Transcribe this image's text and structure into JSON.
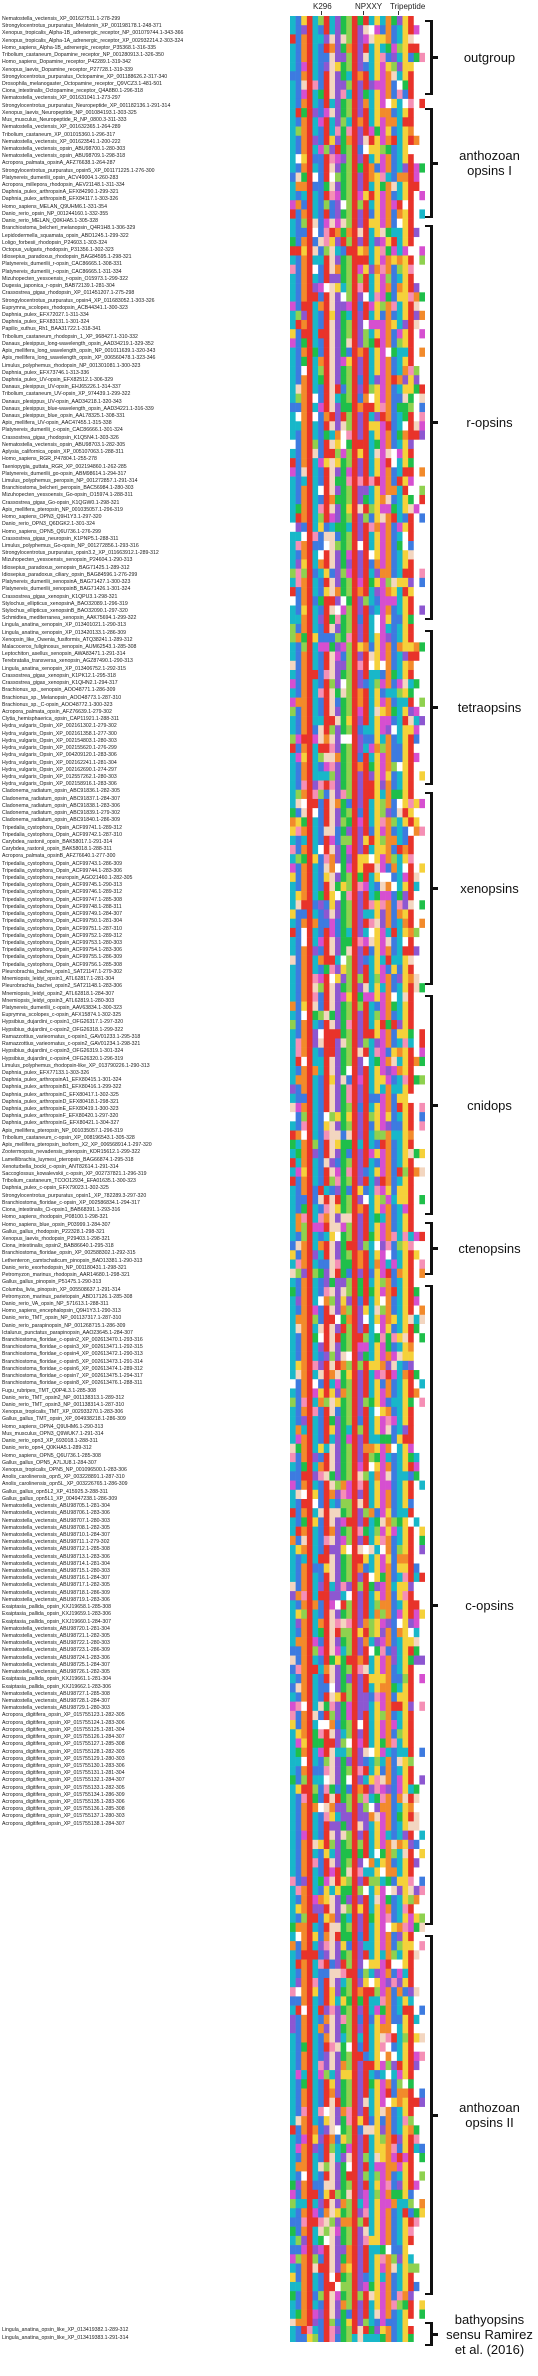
{
  "motifs": [
    {
      "label": "K296",
      "left": 18
    },
    {
      "label": "NPXXY",
      "left": 60
    },
    {
      "label": "Tripeptide",
      "left": 95
    }
  ],
  "clades": [
    {
      "id": "outgroup",
      "label": "outgroup"
    },
    {
      "id": "anthozoan-opsins-i",
      "label": "anthozoan\nopsins I"
    },
    {
      "id": "r-opsins",
      "label": "r-opsins"
    },
    {
      "id": "tetraopsins",
      "label": "tetraopsins"
    },
    {
      "id": "xenopsins",
      "label": "xenopsins"
    },
    {
      "id": "cnidops",
      "label": "cnidops"
    },
    {
      "id": "ctenopsins",
      "label": "ctenopsins"
    },
    {
      "id": "c-opsins",
      "label": "c-opsins"
    },
    {
      "id": "anthozoan-opsins-ii",
      "label": "anthozoan\nopsins II"
    },
    {
      "id": "bathyopsins",
      "label": "bathyopsins\nsensu Ramirez\net al. (2016)"
    }
  ],
  "sequences": [
    "Nematostella_vectensis_XP_001627511.1-278-299",
    "Strongylocentrotus_purpuratus_Melatonin_XP_001198178.1-248-371",
    "Xenopus_tropicalis_Alpha-1B_adrenergic_receptor_NP_001079744.1-343-366",
    "Xenopus_tropicalis_Alpha-1A_adrenergic_receptor_XP_002932214.2-303-324",
    "Homo_sapiens_Alpha-1B_adrenergic_receptor_P35368.1-316-335",
    "Tribolium_castaneum_Dopamine_receptor_NP_001280913.1-326-350",
    "Homo_sapiens_Dopamine_receptor_P42289.1-319-342",
    "Xenopus_laevis_Dopamine_receptor_P27728.1-319-339",
    "Strongylocentrotus_purpuratus_Octopamine_XP_001188626.2-317-340",
    "Drosophila_melanogaster_Octopamine_receptor_Q9VCZ3.1-481-501",
    "Ciona_intestinalis_Octopamine_receptor_Q4A8B0.1-296-318",
    "Nematostella_vectensis_XP_001631041.1-273-297",
    "Strongylocentrotus_purpuratus_Neuropeptide_XP_001182136.1-291-314",
    "Xenopus_laevis_Neuropeptide_NP_001084193.1-303-325",
    "Mus_musculus_Neuropeptide_R_NP_0800.3-311-333",
    "Nematostella_vectensis_XP_001632365.1-264-289",
    "Tribolium_castaneum_XP_001015360.1-296-317",
    "Nematostella_vectensis_XP_001623541.1-200-222",
    "Nematostella_vectensis_opsin_ABU98700.1-280-303",
    "Nematostella_vectensis_opsin_ABU98709.1-298-318",
    "Acropora_palmata_opsinA_AFZ76638.1-264-287",
    "Strongylocentrotus_purpuratus_opsin5_XP_001171225.1-276-300",
    "Platynereis_dumerilii_opsin_ACV49004.1-260-283",
    "Acropora_millepora_rhodopsin_AEV21148.1-311-334",
    "Daphnia_pulex_arthropsinA_EFX84290.1-299-321",
    "Daphnia_pulex_arthropsinB_EFX84117.1-303-326",
    "Homo_sapiens_MELAN_Q9UHM6.1-331-354",
    "Danio_rerio_opsin_NP_001244160.1-332-355",
    "Danio_rerio_MELAN_Q0KHA5.1-305-328",
    "Branchiostoma_belcheri_melanopsin_Q4R1H8.1-306-329",
    "Lepidodermella_squamata_opsin_ABD1245.1-299-322",
    "Loligo_forbesii_rhodopsin_P24603.1-303-324",
    "Octopus_vulgaris_rhodopsin_P31356.1-302-323",
    "Idiosepius_paradoxus_rhodopsin_BAG84595.1-298-321",
    "Platynereis_dumerilii_r-opsin_CAC86665.1-308-331",
    "Platynereis_dumerilii_r-opsin_CAC86665.1-311-334",
    "Mizuhopecten_yessoensis_r-opsin_O15973.1-299-322",
    "Dugesia_japonica_r-opsin_BAB72139.1-281-304",
    "Crassostrea_gigas_rhodopsin_XP_011451207.1-275-298",
    "Strongylocentrotus_purpuratus_opsin4_XP_011683052.1-303-326",
    "Euprymna_scolopes_rhodopsin_ACB44341.1-300-323",
    "Daphnia_pulex_EFX72027.1-311-334",
    "Daphnia_pulex_EFX83131.1-301-324",
    "Papilio_xuthus_Rh1_BAA31722.1-318-341",
    "Tribolium_castaneum_rhodopsin_1_XP_968427.1-310-332",
    "Danaus_plexippus_long-wavelength_opsin_AAD34219.1-329-352",
    "Apis_mellifera_long_wavelength_opsin_NP_001011639.1-320-343",
    "Apis_mellifera_long_wavelength_opsin_XP_006560478.1-323-346",
    "Limulus_polyphemus_rhodopsin_NP_001301081.1-300-323",
    "Daphnia_pulex_EFX73746.1-313-336",
    "Daphnia_pulex_UV-opsin_EFX82512.1-306-329",
    "Danaus_plexippus_UV-opsin_EHJ65226.1-314-337",
    "Tribolium_castaneum_UV-opsin_XP_974439.1-299-322",
    "Danaus_plexippus_UV-opsin_AAD34218.1-320-343",
    "Danaus_plexippus_blue-wavelength_opsin_AAD34221.1-316-339",
    "Danaus_plexippus_blue_opsin_AAL78325.1-308-331",
    "Apis_mellifera_UV-opsin_AAC47455.1-315-338",
    "Platynereis_dumerilii_c-opsin_CAC86666.1-301-324",
    "Crassostrea_gigas_rhodopsin_K1Q5N4.1-303-326",
    "Nematostella_vectensis_opsin_ABU98703.1-282-305",
    "Aplysia_californica_opsin_XP_005107063.1-288-311",
    "Homo_sapiens_RGR_P47804.1-255-278",
    "Taeniopygia_guttata_RGR_XP_002194860.1-262-285",
    "Platynereis_dumerilii_go-opsin_ABM98614.1-294-317",
    "Limulus_polyphemus_peropsin_NP_001272857.1-291-314",
    "Branchiostoma_belcheri_peropsin_BAC56984.1-280-303",
    "Mizuhopecten_yessoensis_Go-opsin_O15974.1-288-311",
    "Crassostrea_gigas_Go-opsin_K1QGW0.1-298-321",
    "Apis_mellifera_pteropsin_NP_001035057.1-296-319",
    "Homo_sapiens_OPN3_Q9H1Y3.1-297-320",
    "Danio_rerio_OPN3_Q6DGK2.1-301-324",
    "Homo_sapiens_OPN5_Q6U736.1-276-299",
    "Crassostrea_gigas_neuropsin_K1PNP5.1-288-311",
    "Limulus_polyphemus_Go-opsin_NP_001272856.1-293-316",
    "Strongylocentrotus_purpuratus_opsin3.2_XP_011663912.1-289-312",
    "Mizuhopecten_yessoensis_xenopsin_P24604.1-290-313",
    "Idiosepius_paradoxus_xenopsin_BAG71425.1-289-312",
    "Idiosepius_paradoxus_ciliary_opsin_BAG84596.1-276-299",
    "Platynereis_dumerilii_xenopsinA_BAG71427.1-300-323",
    "Platynereis_dumerilii_xenopsinB_BAG71426.1-301-324",
    "Crassostrea_gigas_xenopsin_K1QPU3.1-298-321",
    "Stylochus_ellipticus_xenopsinA_BAO32089.1-296-319",
    "Stylochus_ellipticus_xenopsinB_BAO32090.1-297-320",
    "Schmidtea_mediterranea_xenopsin_AAK75694.1-299-322",
    "Lingula_anatina_xenopsin_XP_013401021.1-290-313",
    "Lingula_anatina_xenopsin_XP_013420133.1-286-309",
    "Xenopsin_like_Owenia_fusiformis_ATQ38241.1-289-312",
    "Malacoceros_fuliginosus_xenopsin_AUM62543.1-285-308",
    "Leptochiton_asellus_xenopsin_AWA83471.1-291-314",
    "Terebratalia_transversa_xenopsin_AGZ87490.1-290-313",
    "Lingula_anatina_xenopsin_XP_013406752.1-292-315",
    "Crassostrea_gigas_xenopsin_K1PK12.1-295-318",
    "Crassostrea_gigas_xenopsin_K1QHN2.1-294-317",
    "Brachionus_sp._xenopsin_AOO48771.1-286-309",
    "Brachionus_sp._Melanopsin_AOO48773.1-287-310",
    "Brachionus_sp._C-opsin_AOO48772.1-300-323",
    "Acropora_palmata_opsin_AFZ76639.1-279-302",
    "Clytia_hemisphaerica_opsin_CAP11921.1-288-311",
    "Hydra_vulgaris_Opsin_XP_002161302.1-279-302",
    "Hydra_vulgaris_Opsin_XP_002161358.1-277-300",
    "Hydra_vulgaris_Opsin_XP_002154803.1-280-303",
    "Hydra_vulgaris_Opsin_XP_002155620.1-276-299",
    "Hydra_vulgaris_Opsin_XP_004209120.1-283-306",
    "Hydra_vulgaris_Opsin_XP_002162241.1-281-304",
    "Hydra_vulgaris_Opsin_XP_002162690.1-274-297",
    "Hydra_vulgaris_Opsin_XP_012557262.1-280-303",
    "Hydra_vulgaris_Opsin_XP_002158916.1-283-306",
    "Cladonema_radiatum_opsin_ABC91836.1-282-305",
    "Cladonema_radiatum_opsin_ABC91837.1-284-307",
    "Cladonema_radiatum_opsin_ABC91838.1-283-306",
    "Cladonema_radiatum_opsin_ABC91839.1-279-302",
    "Cladonema_radiatum_opsin_ABC91840.1-286-309",
    "Tripedalia_cystophora_Opsin_ACF99741.1-289-312",
    "Tripedalia_cystophora_Opsin_ACF99742.1-287-310",
    "Carybdea_rastonii_opsin_BAK58017.1-291-314",
    "Carybdea_rastonii_opsin_BAK58018.1-288-311",
    "Acropora_palmata_opsinB_AFZ76640.1-277-300",
    "Tripedalia_cystophora_Opsin_ACF99743.1-286-309",
    "Tripedalia_cystophora_Opsin_ACF99744.1-283-306",
    "Tripedalia_cystophora_neuropsin_AGO21460.1-282-305",
    "Tripedalia_cystophora_Opsin_ACF99745.1-290-313",
    "Tripedalia_cystophora_Opsin_ACF99746.1-289-312",
    "Tripedalia_cystophora_Opsin_ACF99747.1-285-308",
    "Tripedalia_cystophora_Opsin_ACF99748.1-288-311",
    "Tripedalia_cystophora_Opsin_ACF99749.1-284-307",
    "Tripedalia_cystophora_Opsin_ACF99750.1-281-304",
    "Tripedalia_cystophora_Opsin_ACF99751.1-287-310",
    "Tripedalia_cystophora_Opsin_ACF99752.1-289-312",
    "Tripedalia_cystophora_Opsin_ACF99753.1-280-303",
    "Tripedalia_cystophora_Opsin_ACF99754.1-283-306",
    "Tripedalia_cystophora_Opsin_ACF99755.1-286-309",
    "Tripedalia_cystophora_Opsin_ACF99756.1-285-308",
    "Pleurobrachia_bachei_opsin1_SAT21147.1-279-302",
    "Mnemiopsis_leidyi_opsin1_ATL62817.1-281-304",
    "Pleurobrachia_bachei_opsin2_SAT21148.1-283-306",
    "Mnemiopsis_leidyi_opsin2_ATL62818.1-284-307",
    "Mnemiopsis_leidyi_opsin3_ATL62819.1-280-303",
    "Platynereis_dumerilii_c-opsin_AAV63834.1-300-323",
    "Euprymna_scolopes_c-opsin_AFX15874.1-302-325",
    "Hypsibius_dujardini_c-opsin1_OFG26317.1-297-320",
    "Hypsibius_dujardini_c-opsin2_OFG26318.1-299-322",
    "Ramazzottius_varieornatus_c-opsin1_GAV01233.1-295-318",
    "Ramazzottius_varieornatus_c-opsin2_GAV01234.1-298-321",
    "Hypsibius_dujardini_c-opsin3_OFG26319.1-301-324",
    "Hypsibius_dujardini_c-opsin4_OFG26320.1-296-319",
    "Limulus_polyphemus_rhodopsin-like_XP_013790226.1-290-313",
    "Daphnia_pulex_EFX77133.1-303-326",
    "Daphnia_pulex_arthropsinA1_EFX80415.1-301-324",
    "Daphnia_pulex_arthropsinB1_EFX80416.1-299-322",
    "Daphnia_pulex_arthropsinC_EFX80417.1-302-325",
    "Daphnia_pulex_arthropsinD_EFX80418.1-298-321",
    "Daphnia_pulex_arthropsinE_EFX80419.1-300-323",
    "Daphnia_pulex_arthropsinF_EFX80420.1-297-320",
    "Daphnia_pulex_arthropsinG_EFX80421.1-304-327",
    "Apis_mellifera_pteropsin_NP_001035057.1-296-319",
    "Tribolium_castaneum_c-opsin_XP_008196543.1-305-328",
    "Apis_mellifera_pteropsin_isoform_X2_XP_006568914.1-297-320",
    "Zootermopsis_nevadensis_pteropsin_KDR15612.1-299-322",
    "Lamellibrachia_luymesi_pteropsin_BAG66874.1-295-318",
    "Xenoturbella_bocki_c-opsin_ANT82614.1-291-314",
    "Saccoglossus_kowalevskii_c-opsin_XP_002737821.1-296-319",
    "Tribolium_castaneum_TCOO12934_EFA01635.1-300-323",
    "Daphnia_pulex_c-opsin_EFX79023.1-302-325",
    "Strongylocentrotus_purpuratus_opsin1_XP_782289.3-297-320",
    "Branchiostoma_floridae_c-opsin_XP_002586834.1-294-317",
    "Ciona_intestinalis_Ci-opsin1_BAB68391.1-293-316",
    "Homo_sapiens_rhodopsin_P08100.1-298-321",
    "Homo_sapiens_blue_opsin_P03999.1-284-307",
    "Gallus_gallus_rhodopsin_P22328.1-298-321",
    "Xenopus_laevis_rhodopsin_P29403.1-298-321",
    "Ciona_intestinalis_opsin2_BAB86640.1-295-318",
    "Branchiostoma_floridae_opsin_XP_002588302.1-292-315",
    "Lethenteron_camtschaticum_pinopsin_BAD13381.1-290-313",
    "Danio_rerio_exorhodopsin_NP_001180431.1-298-321",
    "Petromyzon_marinus_rhodopsin_AAR14680.1-298-321",
    "Gallus_gallus_pinopsin_P51475.1-290-313",
    "Columba_livia_pinopsin_XP_005508637.1-291-314",
    "Petromyzon_marinus_parietopsin_ABD17126.1-285-308",
    "Danio_rerio_VA_opsin_NP_571613.1-288-311",
    "Homo_sapiens_encephalopsin_Q9H1Y3.1-290-313",
    "Danio_rerio_TMT_opsin_NP_001137317.1-287-310",
    "Danio_rerio_parapinopsin_NP_001268715.1-286-309",
    "Ictalurus_punctatus_parapinopsin_AAO23645.1-284-307",
    "Branchiostoma_floridae_c-opsin2_XP_002613470.1-293-316",
    "Branchiostoma_floridae_c-opsin3_XP_002613471.1-292-315",
    "Branchiostoma_floridae_c-opsin4_XP_002613472.1-290-313",
    "Branchiostoma_floridae_c-opsin5_XP_002613473.1-291-314",
    "Branchiostoma_floridae_c-opsin6_XP_002613474.1-289-312",
    "Branchiostoma_floridae_c-opsin7_XP_002613475.1-294-317",
    "Branchiostoma_floridae_c-opsin8_XP_002613476.1-288-311",
    "Fugu_rubripes_TMT_Q0P4L3.1-285-308",
    "Danio_rerio_TMT_opsin2_NP_001138313.1-289-312",
    "Danio_rerio_TMT_opsin3_NP_001138314.1-287-310",
    "Xenopus_tropicalis_TMT_XP_002933270.1-283-306",
    "Gallus_gallus_TMT_opsin_XP_004938218.1-286-309",
    "Homo_sapiens_OPN4_Q9UHM6.1-290-313",
    "Mus_musculus_OPN3_Q9WUK7.1-291-314",
    "Danio_rerio_opn3_XP_693018.1-288-311",
    "Danio_rerio_opn4_Q0KHA5.1-289-312",
    "Homo_sapiens_OPN5_Q6U736.1-285-308",
    "Gallus_gallus_OPN5_A7LJU8.1-284-307",
    "Xenopus_tropicalis_OPN5_NP_001096500.1-283-306",
    "Anolis_carolinensis_opn5_XP_003228891.1-287-310",
    "Anolis_carolinensis_opn5L_XP_003226765.1-286-309",
    "Gallus_gallus_opn5L2_XP_415925.3-288-311",
    "Gallus_gallus_opn5L1_XP_004947238.1-286-309",
    "Nematostella_vectensis_ABU98705.1-281-304",
    "Nematostella_vectensis_ABU98706.1-283-306",
    "Nematostella_vectensis_ABU98707.1-280-303",
    "Nematostella_vectensis_ABU98708.1-282-305",
    "Nematostella_vectensis_ABU98710.1-284-307",
    "Nematostella_vectensis_ABU98711.1-279-302",
    "Nematostella_vectensis_ABU98712.1-285-308",
    "Nematostella_vectensis_ABU98713.1-283-306",
    "Nematostella_vectensis_ABU98714.1-281-304",
    "Nematostella_vectensis_ABU98715.1-280-303",
    "Nematostella_vectensis_ABU98716.1-284-307",
    "Nematostella_vectensis_ABU98717.1-282-305",
    "Nematostella_vectensis_ABU98718.1-286-309",
    "Nematostella_vectensis_ABU98719.1-283-306",
    "Exaiptasia_pallida_opsin_KXJ19658.1-285-308",
    "Exaiptasia_pallida_opsin_KXJ19659.1-283-306",
    "Exaiptasia_pallida_opsin_KXJ19660.1-284-307",
    "Nematostella_vectensis_ABU98720.1-281-304",
    "Nematostella_vectensis_ABU98721.1-282-305",
    "Nematostella_vectensis_ABU98722.1-280-303",
    "Nematostella_vectensis_ABU98723.1-286-309",
    "Nematostella_vectensis_ABU98724.1-283-306",
    "Nematostella_vectensis_ABU98725.1-284-307",
    "Nematostella_vectensis_ABU98726.1-282-305",
    "Exaiptasia_pallida_opsin_KXJ19661.1-281-304",
    "Exaiptasia_pallida_opsin_KXJ19662.1-283-306",
    "Nematostella_vectensis_ABU98727.1-285-308",
    "Nematostella_vectensis_ABU98728.1-284-307",
    "Nematostella_vectensis_ABU98729.1-280-303",
    "Acropora_digitifera_opsin_XP_015755123.1-282-305",
    "Acropora_digitifera_opsin_XP_015755124.1-283-306",
    "Acropora_digitifera_opsin_XP_015755125.1-281-304",
    "Acropora_digitifera_opsin_XP_015755126.1-284-307",
    "Acropora_digitifera_opsin_XP_015755127.1-285-308",
    "Acropora_digitifera_opsin_XP_015755128.1-282-305",
    "Acropora_digitifera_opsin_XP_015755129.1-280-303",
    "Acropora_digitifera_opsin_XP_015755130.1-283-306",
    "Acropora_digitifera_opsin_XP_015755131.1-281-304",
    "Acropora_digitifera_opsin_XP_015755132.1-284-307",
    "Acropora_digitifera_opsin_XP_015755133.1-282-305",
    "Acropora_digitifera_opsin_XP_015755134.1-286-309",
    "Acropora_digitifera_opsin_XP_015755135.1-283-306",
    "Acropora_digitifera_opsin_XP_015755136.1-285-308",
    "Acropora_digitifera_opsin_XP_015755137.1-280-303",
    "Acropora_digitifera_opsin_XP_015755138.1-284-307"
  ],
  "bottom_sequences": [
    "Lingula_anatina_opsin_like_XP_013419382.1-289-312",
    "Lingula_anatina_opsin_like_XP_013419383.1-291-314"
  ],
  "palette": [
    "#e8332a",
    "#f28a2b",
    "#f5d13a",
    "#8fd14f",
    "#1fbf4a",
    "#18b7c9",
    "#3d7be0",
    "#8d57d1",
    "#d64fd0",
    "#f58fb5",
    "#f3d6c0",
    "#ffffff"
  ]
}
